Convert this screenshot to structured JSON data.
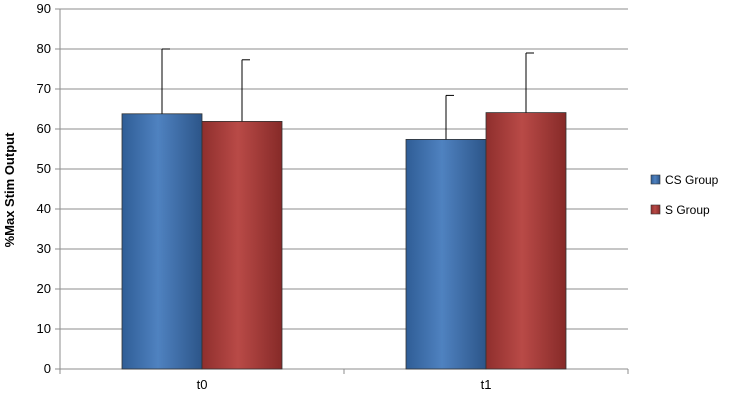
{
  "chart_data": {
    "type": "bar",
    "categories": [
      "t0",
      "t1"
    ],
    "series": [
      {
        "name": "CS Group",
        "values": [
          63.8,
          57.4
        ],
        "errors": [
          16.2,
          11.0
        ],
        "color": "#3a6aa5"
      },
      {
        "name": "S Group",
        "values": [
          61.9,
          64.1
        ],
        "errors": [
          15.4,
          14.9
        ],
        "color": "#a13b39"
      }
    ],
    "ylabel": "%Max Stim Output",
    "xlabel": "",
    "ylim": [
      0,
      90
    ],
    "yticks": [
      0,
      10,
      20,
      30,
      40,
      50,
      60,
      70,
      80,
      90
    ],
    "grid": true,
    "legend_position": "right"
  }
}
